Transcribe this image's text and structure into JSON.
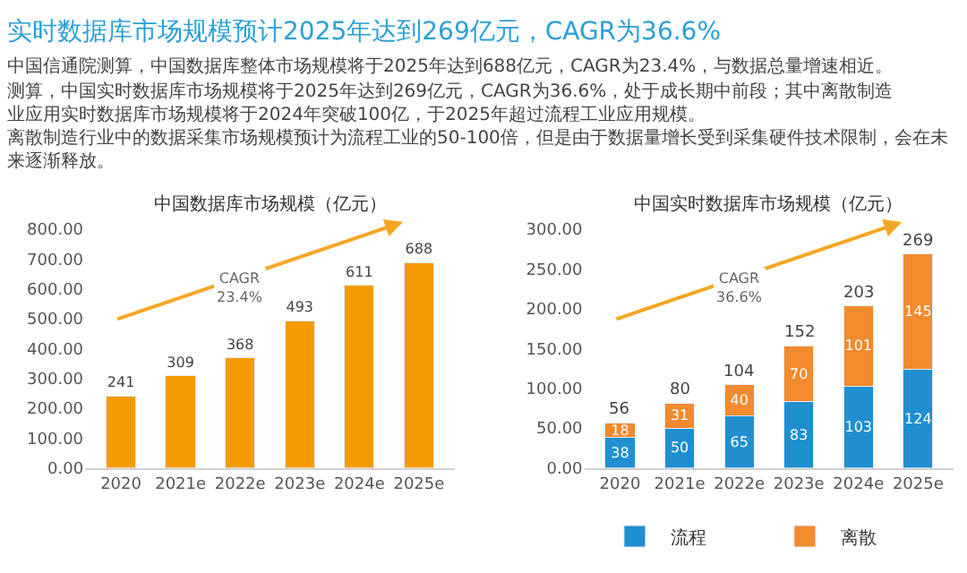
{
  "chart_data": [
    {
      "type": "other",
      "title": "实时数据库市场规模预计2025年达到269亿元，CAGR为36.6%",
      "annotations": [
        "中国信通院测算，中国数据库整体市场规模将于2025年达到688亿元，CAGR为23.4%，与数据总量增速相近。",
        "测算，中国实时数据库市场规模将于2025年达到269亿元，CAGR为36.6%，处于成长期中前段；其中离散制造业应用实时数据库市场规模将于2024年突破100亿，于2025年超过流程工业应用规模。",
        "离散制造行业中的数据采集市场规模预计为流程工业的50-100倍，但是由于数据量增长受到采集硬件技术限制，会在未来逐渐释放。"
      ]
    },
    {
      "type": "bar",
      "title": "中国数据库市场规模（亿元）",
      "categories": [
        "2020",
        "2021e",
        "2022e",
        "2023e",
        "2024e",
        "2025e"
      ],
      "values": [
        241,
        309,
        368,
        493,
        611,
        688
      ],
      "color": "#f59b00",
      "ylim": [
        0,
        800
      ],
      "yticks": [
        {
          "value": 0,
          "label": "0.00"
        },
        {
          "value": 100,
          "label": "100.00"
        },
        {
          "value": 200,
          "label": "200.00"
        },
        {
          "value": 300,
          "label": "300.00"
        },
        {
          "value": 400,
          "label": "400.00"
        },
        {
          "value": 500,
          "label": "500.00"
        },
        {
          "value": 600,
          "label": "600.00"
        },
        {
          "value": 700,
          "label": "700.00"
        },
        {
          "value": 800,
          "label": "800.00"
        }
      ],
      "data_labels": true,
      "grid": false,
      "legend": false,
      "annotations": [
        "CAGR\n23.4%"
      ]
    },
    {
      "type": "bar",
      "title": "中国实时数据库市场规模（亿元）",
      "stacked": true,
      "categories": [
        "2020",
        "2021e",
        "2022e",
        "2023e",
        "2024e",
        "2025e"
      ],
      "series": [
        {
          "name": "流程",
          "color": "#1f8fd0",
          "values": [
            38,
            50,
            65,
            83,
            103,
            124
          ]
        },
        {
          "name": "离散",
          "color": "#f28a2e",
          "values": [
            18,
            31,
            40,
            70,
            101,
            145
          ]
        }
      ],
      "totals": [
        "56",
        "80",
        "104",
        "152",
        "203",
        "269"
      ],
      "ylim": [
        0,
        300
      ],
      "yticks": [
        {
          "value": 0,
          "label": "0.00"
        },
        {
          "value": 50,
          "label": "50.00"
        },
        {
          "value": 100,
          "label": "100.00"
        },
        {
          "value": 150,
          "label": "150.00"
        },
        {
          "value": 200,
          "label": "200.00"
        },
        {
          "value": 250,
          "label": "250.00"
        },
        {
          "value": 300,
          "label": "300.00"
        }
      ],
      "data_labels": true,
      "grid": false,
      "legend": "bottom",
      "annotations": [
        "CAGR\n36.6%"
      ]
    }
  ]
}
